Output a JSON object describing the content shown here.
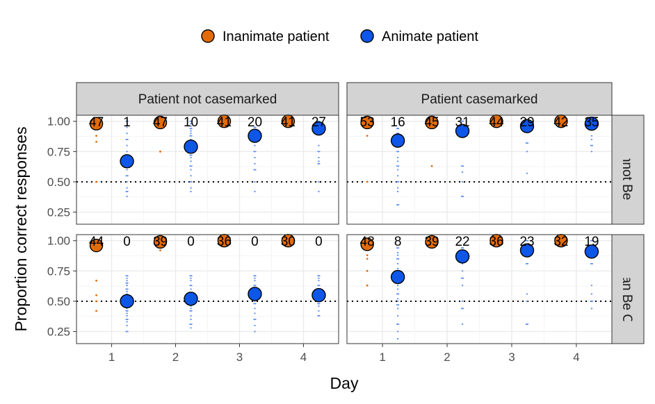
{
  "chart_data": {
    "type": "scatter",
    "title": "",
    "xlabel": "Day",
    "ylabel": "Proportion correct responses",
    "x_ticks": [
      "1",
      "2",
      "3",
      "4"
    ],
    "y_ticks": [
      "0.25",
      "0.50",
      "0.75",
      "1.00"
    ],
    "xlim": [
      0.45,
      4.55
    ],
    "ylim": [
      0.15,
      1.05
    ],
    "reference_line": 0.5,
    "legend": {
      "placement": "top",
      "entries": [
        {
          "name": "Inanimate patient",
          "color": "#e36c0a"
        },
        {
          "name": "Animate patient",
          "color": "#0d56e8"
        }
      ]
    },
    "colors": {
      "inanimate": "#e36c0a",
      "animate": "#0d56e8",
      "animate_jitter": "#5a8ff0",
      "strip_fill": "#d3d3d3",
      "grid": "#ebebeb"
    },
    "column_strips": [
      "Patient not casemarked",
      "Patient casemarked"
    ],
    "row_strips": [
      "Objects Cannot Be Omitted",
      "Objects Can Be Omitted"
    ],
    "panels": [
      {
        "row": 0,
        "col": 0,
        "series": [
          {
            "name": "Inanimate patient",
            "x": [
              1,
              2,
              3,
              4
            ],
            "y": [
              0.98,
              0.99,
              1.0,
              1.0
            ],
            "n": [
              "47",
              "47",
              "41",
              "41"
            ]
          },
          {
            "name": "Animate patient",
            "x": [
              1,
              2,
              3,
              4
            ],
            "y": [
              0.67,
              0.79,
              0.88,
              0.94
            ],
            "n": [
              "1",
              "10",
              "20",
              "27"
            ]
          }
        ],
        "raw_inanimate": [
          [
            1,
            0.88
          ],
          [
            1,
            0.83
          ],
          [
            1,
            0.5
          ],
          [
            2,
            0.75
          ]
        ],
        "raw_animate": [
          [
            1,
            [
              1.0,
              0.95,
              0.9,
              0.85,
              0.8,
              0.75,
              0.7,
              0.65,
              0.6,
              0.55,
              0.5,
              0.45,
              0.42,
              0.38
            ]
          ],
          [
            2,
            [
              1.0,
              0.98,
              0.96,
              0.94,
              0.92,
              0.9,
              0.88,
              0.85,
              0.82,
              0.8,
              0.78,
              0.75,
              0.72,
              0.7,
              0.67,
              0.63,
              0.6,
              0.55,
              0.5,
              0.45,
              0.42
            ]
          ],
          [
            3,
            [
              0.95,
              0.93,
              0.9,
              0.88,
              0.85,
              0.8,
              0.75,
              0.7,
              0.65,
              0.6,
              0.5,
              0.42
            ]
          ],
          [
            4,
            [
              1.0,
              0.95,
              0.8,
              0.75,
              0.7,
              0.67,
              0.65,
              0.5,
              0.42
            ]
          ]
        ],
        "error_bars": []
      },
      {
        "row": 0,
        "col": 1,
        "series": [
          {
            "name": "Inanimate patient",
            "x": [
              1,
              2,
              3,
              4
            ],
            "y": [
              0.99,
              0.99,
              1.0,
              1.0
            ],
            "n": [
              "53",
              "45",
              "44",
              "42"
            ]
          },
          {
            "name": "Animate patient",
            "x": [
              1,
              2,
              3,
              4
            ],
            "y": [
              0.84,
              0.92,
              0.96,
              0.98
            ],
            "n": [
              "16",
              "31",
              "29",
              "35"
            ]
          }
        ],
        "raw_inanimate": [
          [
            1,
            0.88
          ],
          [
            1,
            0.5
          ],
          [
            2,
            0.63
          ]
        ],
        "raw_animate": [
          [
            1,
            [
              0.94,
              0.94,
              0.94,
              0.9,
              0.85,
              0.8,
              0.75,
              0.7,
              0.67,
              0.63,
              0.6,
              0.55,
              0.5,
              0.45,
              0.42,
              0.31
            ]
          ],
          [
            2,
            [
              1.0,
              0.95,
              0.9,
              0.63,
              0.58,
              0.5,
              0.38
            ]
          ],
          [
            3,
            [
              0.94,
              0.94,
              0.94,
              0.82,
              0.75,
              0.57
            ]
          ],
          [
            4,
            [
              1.0,
              0.98,
              0.95,
              0.93,
              0.88,
              0.85,
              0.8,
              0.75
            ]
          ]
        ],
        "error_bars": []
      },
      {
        "row": 1,
        "col": 0,
        "series": [
          {
            "name": "Inanimate patient",
            "x": [
              1,
              2,
              3,
              4
            ],
            "y": [
              0.96,
              0.99,
              1.0,
              1.0
            ],
            "n": [
              "44",
              "39",
              "36",
              "30"
            ]
          },
          {
            "name": "Animate patient",
            "x": [
              1,
              2,
              3,
              4
            ],
            "y": [
              0.5,
              0.52,
              0.56,
              0.55
            ],
            "n": [
              "0",
              "0",
              "0",
              "0"
            ]
          }
        ],
        "raw_inanimate": [
          [
            1,
            0.67
          ],
          [
            1,
            0.55
          ],
          [
            1,
            0.5
          ],
          [
            1,
            0.42
          ],
          [
            2,
            0.92
          ]
        ],
        "raw_animate": [
          [
            1,
            [
              0.71,
              0.69,
              0.67,
              0.65,
              0.63,
              0.63,
              0.6,
              0.58,
              0.56,
              0.54,
              0.52,
              0.5,
              0.48,
              0.46,
              0.44,
              0.42,
              0.4,
              0.38,
              0.35,
              0.33,
              0.3,
              0.25
            ]
          ],
          [
            2,
            [
              0.71,
              0.69,
              0.67,
              0.63,
              0.6,
              0.56,
              0.54,
              0.52,
              0.5,
              0.48,
              0.46,
              0.44,
              0.42,
              0.38,
              0.35,
              0.31,
              0.28
            ]
          ],
          [
            3,
            [
              0.71,
              0.69,
              0.67,
              0.63,
              0.6,
              0.57,
              0.54,
              0.52,
              0.5,
              0.48,
              0.44,
              0.4,
              0.35,
              0.3,
              0.25
            ]
          ],
          [
            4,
            [
              0.71,
              0.69,
              0.67,
              0.63,
              0.6,
              0.57,
              0.55,
              0.52,
              0.5,
              0.48,
              0.46,
              0.42,
              0.38
            ]
          ]
        ],
        "error_bars": []
      },
      {
        "row": 1,
        "col": 1,
        "series": [
          {
            "name": "Inanimate patient",
            "x": [
              1,
              2,
              3,
              4
            ],
            "y": [
              0.97,
              0.99,
              1.0,
              1.0
            ],
            "n": [
              "48",
              "39",
              "36",
              "32"
            ]
          },
          {
            "name": "Animate patient",
            "x": [
              1,
              2,
              3,
              4
            ],
            "y": [
              0.7,
              0.87,
              0.92,
              0.91
            ],
            "n": [
              "8",
              "22",
              "23",
              "19"
            ]
          }
        ],
        "raw_inanimate": [
          [
            1,
            0.88
          ],
          [
            1,
            0.85
          ],
          [
            1,
            0.75
          ],
          [
            1,
            0.63
          ],
          [
            1,
            0.63
          ]
        ],
        "raw_animate": [
          [
            1,
            [
              0.94,
              0.9,
              0.88,
              0.85,
              0.81,
              0.77,
              0.75,
              0.72,
              0.69,
              0.65,
              0.63,
              0.6,
              0.56,
              0.52,
              0.5,
              0.47,
              0.44,
              0.38,
              0.31,
              0.25,
              0.19
            ]
          ],
          [
            2,
            [
              0.94,
              0.9,
              0.88,
              0.85,
              0.81,
              0.75,
              0.69,
              0.63,
              0.5,
              0.44,
              0.31
            ]
          ],
          [
            3,
            [
              1.0,
              0.94,
              0.88,
              0.81,
              0.56,
              0.5,
              0.31
            ]
          ],
          [
            4,
            [
              1.0,
              0.94,
              0.88,
              0.81,
              0.63,
              0.56,
              0.5,
              0.44
            ]
          ]
        ],
        "error_bars": [
          {
            "x": 1,
            "low": 0.66,
            "high": 0.74
          },
          {
            "x": 2,
            "low": 0.83,
            "high": 0.91
          }
        ]
      }
    ]
  }
}
